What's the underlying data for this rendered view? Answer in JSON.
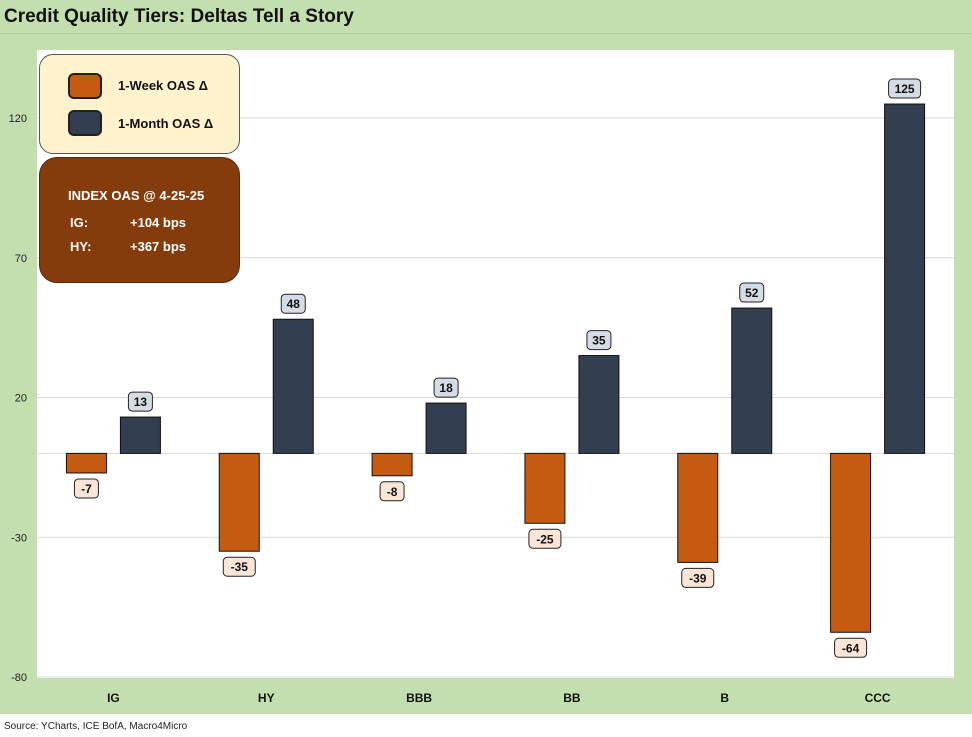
{
  "title": "Credit Quality Tiers: Deltas Tell a Story",
  "source": "Source: YCharts, ICE BofA, Macro4Micro",
  "legend": {
    "items": [
      {
        "label": "1-Week OAS Δ",
        "color": "#c55a11"
      },
      {
        "label": "1-Month OAS Δ",
        "color": "#333f50"
      }
    ]
  },
  "info_box": {
    "title": "INDEX OAS @ 4-25-25",
    "rows": [
      {
        "label": "IG:",
        "value": "+104 bps"
      },
      {
        "label": "HY:",
        "value": "+367 bps"
      }
    ],
    "color": "#843c0c"
  },
  "colors": {
    "background_frame": "#c3dfb0",
    "week_label_bg": "#fbe5d6",
    "month_label_bg": "#d6dce5"
  },
  "chart_data": {
    "type": "bar",
    "categories": [
      "IG",
      "HY",
      "BBB",
      "BB",
      "B",
      "CCC"
    ],
    "series": [
      {
        "name": "1-Week OAS Δ",
        "values": [
          -7,
          -35,
          -8,
          -25,
          -39,
          -64
        ]
      },
      {
        "name": "1-Month OAS Δ",
        "values": [
          13,
          48,
          18,
          35,
          52,
          125
        ]
      }
    ],
    "yticks": [
      -80,
      -30,
      20,
      70,
      120
    ],
    "ylim": [
      -80,
      140
    ],
    "grid": true,
    "legend_position": "top-left"
  }
}
